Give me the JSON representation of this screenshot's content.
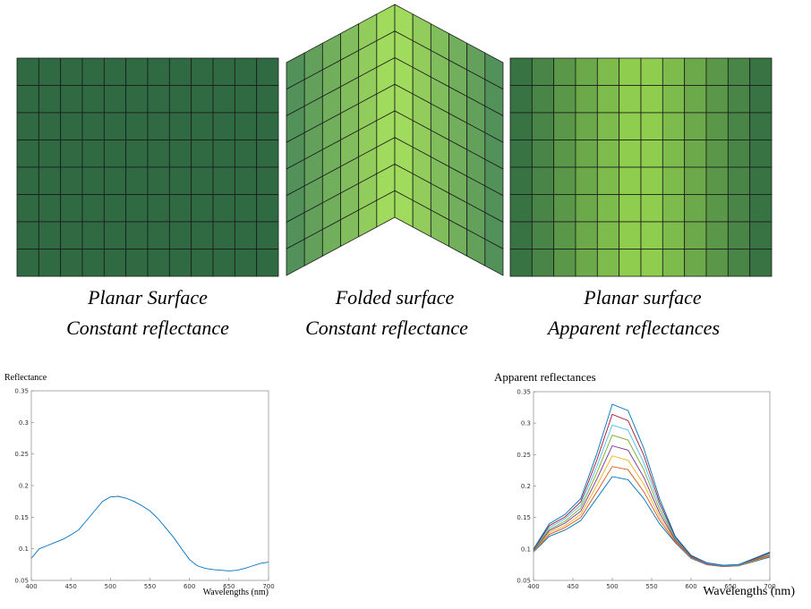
{
  "panels": [
    {
      "caption": [
        "Planar Surface",
        "Constant reflectance"
      ]
    },
    {
      "caption": [
        "Folded surface",
        "Constant reflectance"
      ]
    },
    {
      "caption": [
        "Planar surface",
        "Apparent reflectances"
      ]
    }
  ],
  "chart_data": [
    {
      "type": "line",
      "y_label": "Reflectance",
      "x_label": "Wavelengths (nm)",
      "x": [
        400,
        410,
        420,
        430,
        440,
        450,
        460,
        470,
        480,
        490,
        500,
        510,
        520,
        530,
        540,
        550,
        560,
        570,
        580,
        590,
        600,
        610,
        620,
        630,
        640,
        650,
        660,
        670,
        680,
        690,
        700
      ],
      "series": [
        {
          "color": "#0072bd",
          "values": [
            0.085,
            0.1,
            0.105,
            0.11,
            0.115,
            0.122,
            0.13,
            0.145,
            0.16,
            0.175,
            0.182,
            0.183,
            0.18,
            0.175,
            0.168,
            0.16,
            0.148,
            0.133,
            0.118,
            0.1,
            0.083,
            0.073,
            0.069,
            0.067,
            0.066,
            0.065,
            0.066,
            0.069,
            0.073,
            0.077,
            0.079
          ]
        }
      ],
      "xlim": [
        400,
        700
      ],
      "xticks": [
        400,
        450,
        500,
        550,
        600,
        650,
        700
      ],
      "ylim": [
        0.05,
        0.35
      ],
      "yticks": [
        0.05,
        0.1,
        0.15,
        0.2,
        0.25,
        0.3,
        0.35
      ]
    },
    {
      "type": "line",
      "y_label": "Apparent reflectances",
      "x_label": "Wavelengths (nm)",
      "x": [
        400,
        420,
        440,
        460,
        480,
        500,
        520,
        540,
        560,
        580,
        600,
        620,
        640,
        660,
        680,
        700
      ],
      "series": [
        {
          "color": "#0072bd",
          "values": [
            0.095,
            0.12,
            0.13,
            0.145,
            0.18,
            0.215,
            0.21,
            0.18,
            0.14,
            0.11,
            0.085,
            0.075,
            0.072,
            0.073,
            0.08,
            0.087
          ]
        },
        {
          "color": "#d95319",
          "values": [
            0.096,
            0.123,
            0.134,
            0.15,
            0.19,
            0.231,
            0.226,
            0.191,
            0.146,
            0.111,
            0.086,
            0.075,
            0.072,
            0.073,
            0.081,
            0.088
          ]
        },
        {
          "color": "#edb120",
          "values": [
            0.096,
            0.126,
            0.137,
            0.155,
            0.2,
            0.248,
            0.241,
            0.203,
            0.151,
            0.113,
            0.086,
            0.076,
            0.073,
            0.074,
            0.081,
            0.089
          ]
        },
        {
          "color": "#7e2f8e",
          "values": [
            0.097,
            0.129,
            0.141,
            0.16,
            0.21,
            0.264,
            0.257,
            0.214,
            0.157,
            0.114,
            0.087,
            0.076,
            0.073,
            0.074,
            0.082,
            0.09
          ]
        },
        {
          "color": "#77ac30",
          "values": [
            0.098,
            0.131,
            0.144,
            0.165,
            0.22,
            0.281,
            0.273,
            0.226,
            0.163,
            0.116,
            0.088,
            0.077,
            0.073,
            0.074,
            0.083,
            0.092
          ]
        },
        {
          "color": "#4dbeee",
          "values": [
            0.099,
            0.134,
            0.148,
            0.17,
            0.23,
            0.297,
            0.289,
            0.237,
            0.169,
            0.117,
            0.089,
            0.077,
            0.073,
            0.074,
            0.084,
            0.093
          ]
        },
        {
          "color": "#a2142f",
          "values": [
            0.099,
            0.137,
            0.151,
            0.175,
            0.24,
            0.314,
            0.304,
            0.249,
            0.174,
            0.119,
            0.089,
            0.078,
            0.074,
            0.075,
            0.084,
            0.094
          ]
        },
        {
          "color": "#0072bd",
          "values": [
            0.1,
            0.14,
            0.155,
            0.18,
            0.25,
            0.33,
            0.32,
            0.26,
            0.18,
            0.12,
            0.09,
            0.078,
            0.074,
            0.075,
            0.085,
            0.095
          ]
        }
      ],
      "xlim": [
        400,
        700
      ],
      "xticks": [
        400,
        450,
        500,
        550,
        600,
        650,
        700
      ],
      "ylim": [
        0.05,
        0.35
      ],
      "yticks": [
        0.05,
        0.1,
        0.15,
        0.2,
        0.25,
        0.3,
        0.35
      ]
    }
  ]
}
